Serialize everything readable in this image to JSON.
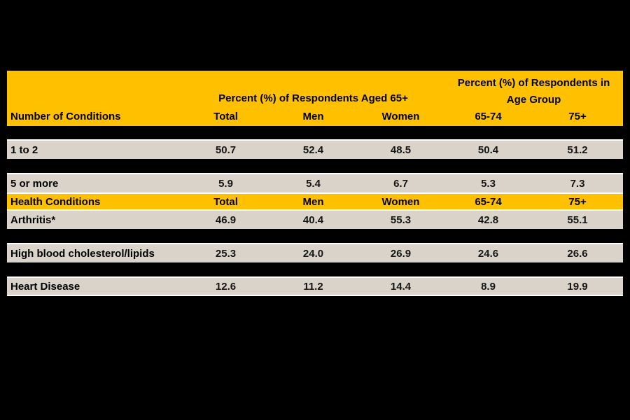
{
  "window": {
    "background": "#000000"
  },
  "table": {
    "colors": {
      "header_bg": "#FFC000",
      "row_bg": "#D9D3C9",
      "grid_line": "#FFFFFF",
      "text": "#000000"
    },
    "header": {
      "group_aged": "Percent (%) of Respondents Aged 65+",
      "group_age_line1": "Percent (%) of Respondents in",
      "group_age_line2": "Age Group",
      "columns": [
        "Number of Conditions",
        "Total",
        "Men",
        "Women",
        "65-74",
        "75+"
      ]
    },
    "rows": [
      {
        "type": "data",
        "label": "1 to 2",
        "values": [
          "50.7",
          "52.4",
          "48.5",
          "50.4",
          "51.2"
        ]
      },
      {
        "type": "redacted"
      },
      {
        "type": "data",
        "label": "5 or more",
        "values": [
          "5.9",
          "5.4",
          "6.7",
          "5.3",
          "7.3"
        ]
      },
      {
        "type": "section",
        "label": "Health Conditions",
        "values": [
          "Total",
          "Men",
          "Women",
          "65-74",
          "75+"
        ]
      },
      {
        "type": "data",
        "label": "Arthritis*",
        "values": [
          "46.9",
          "40.4",
          "55.3",
          "42.8",
          "55.1"
        ]
      },
      {
        "type": "redacted"
      },
      {
        "type": "data",
        "label": "High blood cholesterol/lipids",
        "values": [
          "25.3",
          "24.0",
          "26.9",
          "24.6",
          "26.6"
        ]
      },
      {
        "type": "redacted"
      },
      {
        "type": "data",
        "label": "Heart Disease",
        "values": [
          "12.6",
          "11.2",
          "14.4",
          "8.9",
          "19.9"
        ]
      }
    ]
  }
}
